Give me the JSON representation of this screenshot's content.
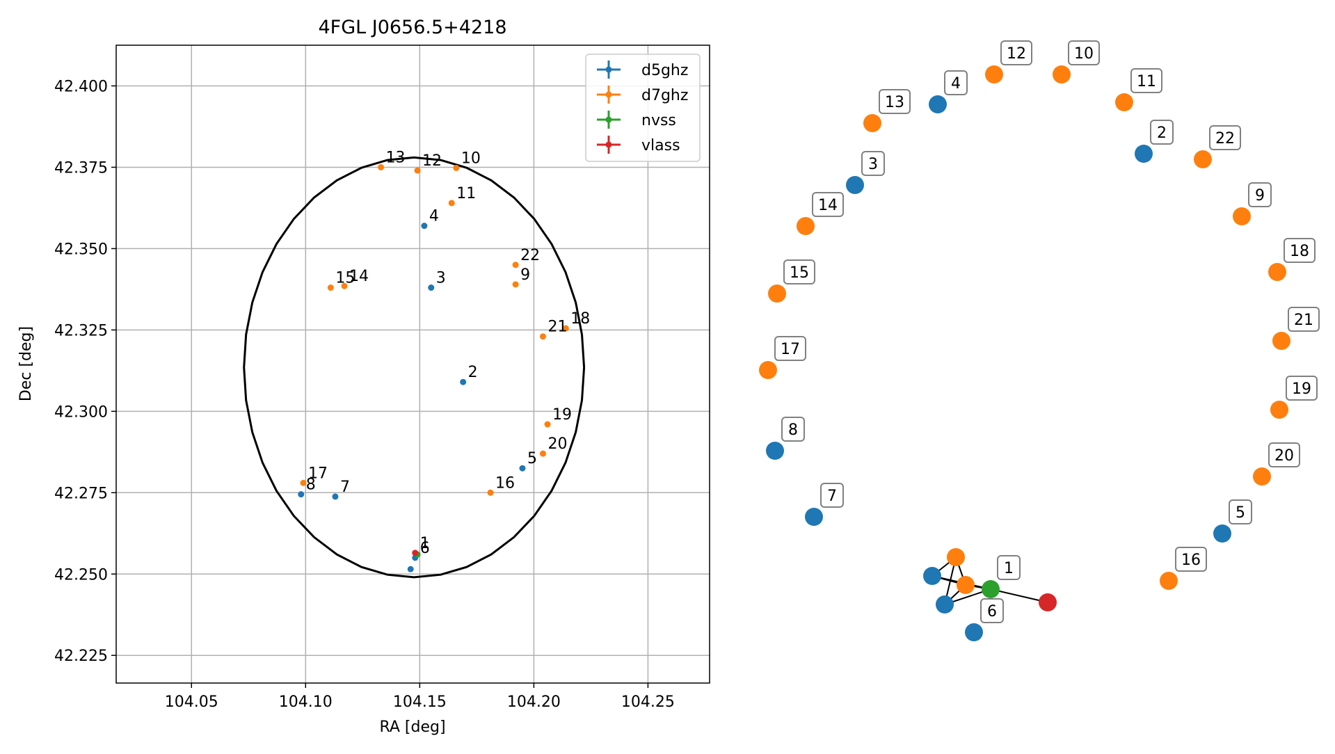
{
  "chart_data": [
    {
      "type": "scatter",
      "title": "4FGL J0656.5+4218",
      "xlabel": "RA [deg]",
      "ylabel": "Dec [deg]",
      "xlim": [
        104.017,
        104.277
      ],
      "ylim": [
        42.2165,
        42.4125
      ],
      "xticks": [
        "104.05",
        "104.10",
        "104.15",
        "104.20",
        "104.25"
      ],
      "yticks": [
        "42.225",
        "42.250",
        "42.275",
        "42.300",
        "42.325",
        "42.350",
        "42.375",
        "42.400"
      ],
      "grid": true,
      "legend_position": "top-right",
      "series": [
        {
          "name": "d5ghz",
          "color": "#1f77b4",
          "points": [
            {
              "label": "2",
              "x": 104.169,
              "y": 42.309
            },
            {
              "label": "3",
              "x": 104.155,
              "y": 42.338
            },
            {
              "label": "4",
              "x": 104.152,
              "y": 42.357
            },
            {
              "label": "5",
              "x": 104.195,
              "y": 42.2825
            },
            {
              "label": "6",
              "x": 104.148,
              "y": 42.255
            },
            {
              "label": "7",
              "x": 104.113,
              "y": 42.2738
            },
            {
              "label": "8",
              "x": 104.098,
              "y": 42.2745
            },
            {
              "label": "",
              "x": 104.146,
              "y": 42.2515
            }
          ]
        },
        {
          "name": "d7ghz",
          "color": "#ff7f0e",
          "points": [
            {
              "label": "9",
              "x": 104.192,
              "y": 42.339
            },
            {
              "label": "10",
              "x": 104.166,
              "y": 42.3748
            },
            {
              "label": "11",
              "x": 104.164,
              "y": 42.364
            },
            {
              "label": "12",
              "x": 104.149,
              "y": 42.374
            },
            {
              "label": "13",
              "x": 104.133,
              "y": 42.375
            },
            {
              "label": "14",
              "x": 104.117,
              "y": 42.3385
            },
            {
              "label": "15",
              "x": 104.111,
              "y": 42.338
            },
            {
              "label": "16",
              "x": 104.181,
              "y": 42.275
            },
            {
              "label": "17",
              "x": 104.099,
              "y": 42.278
            },
            {
              "label": "18",
              "x": 104.214,
              "y": 42.3255
            },
            {
              "label": "19",
              "x": 104.206,
              "y": 42.296
            },
            {
              "label": "20",
              "x": 104.204,
              "y": 42.287
            },
            {
              "label": "21",
              "x": 104.204,
              "y": 42.323
            },
            {
              "label": "22",
              "x": 104.192,
              "y": 42.345
            }
          ]
        },
        {
          "name": "nvss",
          "color": "#2ca02c",
          "points": [
            {
              "label": "",
              "x": 104.149,
              "y": 42.256
            }
          ]
        },
        {
          "name": "vlass",
          "color": "#d62728",
          "points": [
            {
              "label": "1",
              "x": 104.148,
              "y": 42.2565
            }
          ]
        }
      ],
      "ellipse": {
        "center_x": 104.1475,
        "center_y": 42.3135,
        "semi_axis_x": 0.0745,
        "semi_axis_y": 0.0645,
        "color": "#000000"
      }
    },
    {
      "type": "graph",
      "nodes": [
        {
          "label": "",
          "color": "#ff7f0e"
        },
        {
          "label": "",
          "color": "#1f77b4"
        },
        {
          "label": "",
          "color": "#ff7f0e"
        },
        {
          "label": "1",
          "color": "#2ca02c"
        },
        {
          "label": "",
          "color": "#d62728"
        },
        {
          "label": "",
          "color": "#1f77b4"
        },
        {
          "label": "6",
          "color": "#1f77b4"
        },
        {
          "label": "7",
          "color": "#1f77b4"
        },
        {
          "label": "8",
          "color": "#1f77b4"
        },
        {
          "label": "17",
          "color": "#ff7f0e"
        },
        {
          "label": "15",
          "color": "#ff7f0e"
        },
        {
          "label": "14",
          "color": "#ff7f0e"
        },
        {
          "label": "3",
          "color": "#1f77b4"
        },
        {
          "label": "13",
          "color": "#ff7f0e"
        },
        {
          "label": "4",
          "color": "#1f77b4"
        },
        {
          "label": "12",
          "color": "#ff7f0e"
        },
        {
          "label": "10",
          "color": "#ff7f0e"
        },
        {
          "label": "11",
          "color": "#ff7f0e"
        },
        {
          "label": "2",
          "color": "#1f77b4"
        },
        {
          "label": "22",
          "color": "#ff7f0e"
        },
        {
          "label": "9",
          "color": "#ff7f0e"
        },
        {
          "label": "18",
          "color": "#ff7f0e"
        },
        {
          "label": "21",
          "color": "#ff7f0e"
        },
        {
          "label": "19",
          "color": "#ff7f0e"
        },
        {
          "label": "20",
          "color": "#ff7f0e"
        },
        {
          "label": "5",
          "color": "#1f77b4"
        },
        {
          "label": "16",
          "color": "#ff7f0e"
        }
      ],
      "edges": [
        [
          0,
          2
        ],
        [
          0,
          5
        ],
        [
          0,
          1
        ],
        [
          1,
          2
        ],
        [
          1,
          3
        ],
        [
          2,
          3
        ],
        [
          2,
          5
        ],
        [
          3,
          4
        ],
        [
          3,
          5
        ]
      ]
    }
  ]
}
